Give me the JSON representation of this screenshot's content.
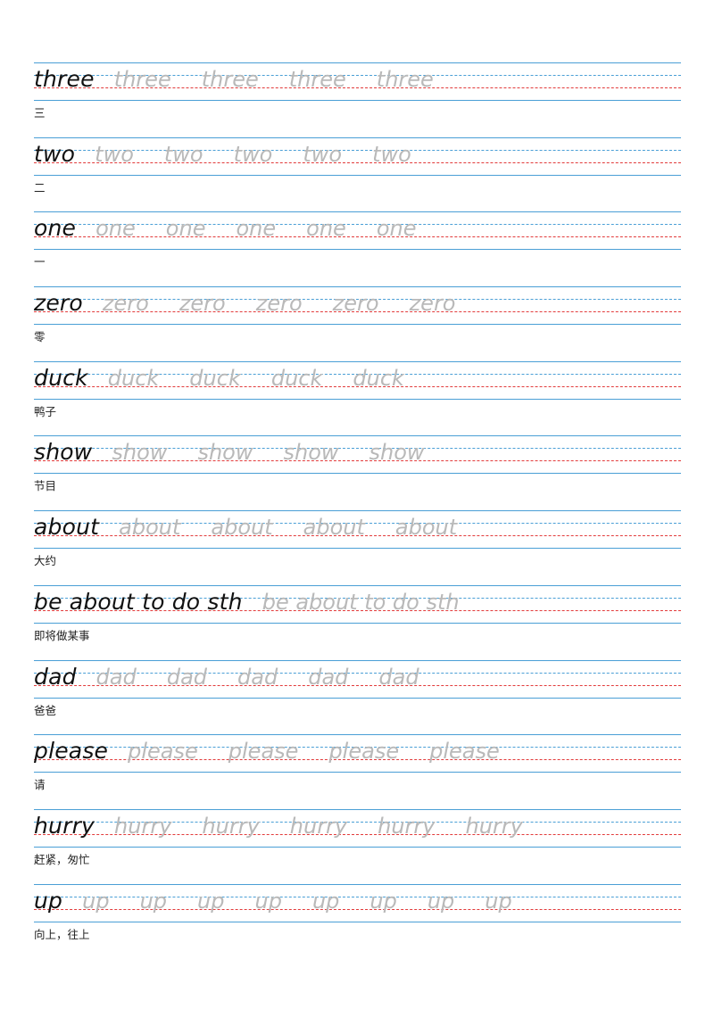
{
  "entries": [
    {
      "word": "three",
      "meaning": "三",
      "repeats": 4
    },
    {
      "word": "two",
      "meaning": "二",
      "repeats": 5
    },
    {
      "word": "one",
      "meaning": "一",
      "repeats": 5
    },
    {
      "word": "zero",
      "meaning": "零",
      "repeats": 5
    },
    {
      "word": "duck",
      "meaning": "鸭子",
      "repeats": 4
    },
    {
      "word": "show",
      "meaning": "节目",
      "repeats": 4
    },
    {
      "word": "about",
      "meaning": "大约",
      "repeats": 4
    },
    {
      "word": "be about to do sth",
      "meaning": "即将做某事",
      "repeats": 1
    },
    {
      "word": "dad",
      "meaning": "爸爸",
      "repeats": 5
    },
    {
      "word": "please",
      "meaning": "请",
      "repeats": 4
    },
    {
      "word": "hurry",
      "meaning": "赶紧，匆忙",
      "repeats": 5
    },
    {
      "word": "up",
      "meaning": "向上，往上",
      "repeats": 8
    }
  ],
  "colors": {
    "guide_line": "#4a9fd6",
    "baseline": "#e23b3b",
    "trace_text": "#b9b9b9",
    "main_text": "#111111"
  }
}
